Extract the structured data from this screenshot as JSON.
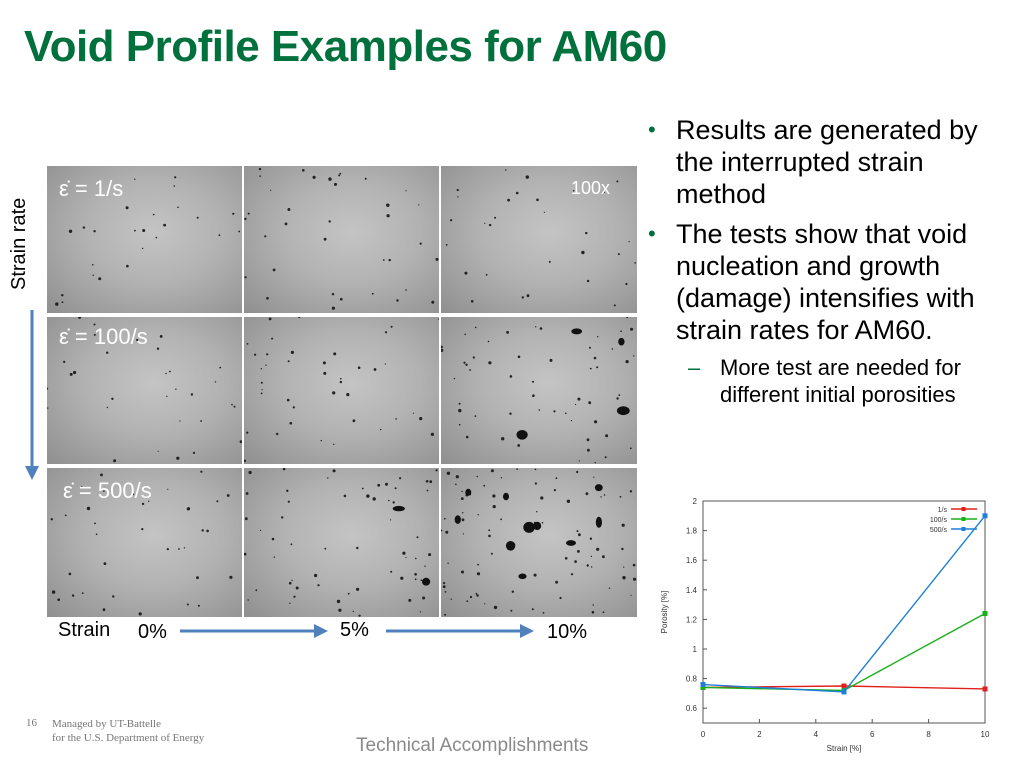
{
  "slide": {
    "title": "Void Profile Examples for AM60",
    "footer_number": "16",
    "footer_org_line1": "Managed by UT-Battelle",
    "footer_org_line2": "for the U.S. Department of Energy",
    "footer_section": "Technical Accomplishments",
    "accent_color": "#00703c"
  },
  "micrographs": {
    "side_label": "Strain rate",
    "magnification": "100x",
    "rows": [
      {
        "rate_label": "ε̇ = 1/s"
      },
      {
        "rate_label": "ε̇ = 100/s"
      },
      {
        "rate_label": "ε̇ = 500/s"
      }
    ],
    "strain_label": "Strain",
    "strain_ticks": [
      "0%",
      "5%",
      "10%"
    ],
    "arrow_color": "#4f81bd"
  },
  "bullets": {
    "items": [
      "Results are generated by the interrupted strain method",
      "The tests show that void nucleation and growth (damage) intensifies with strain rates for AM60."
    ],
    "sub_items": [
      "More test are needed for different initial porosities"
    ]
  },
  "chart_data": {
    "type": "line",
    "xlabel": "Strain [%]",
    "ylabel": "Porosity [%]",
    "xlim": [
      0,
      10
    ],
    "ylim": [
      0.5,
      2
    ],
    "xticks": [
      "0",
      "2",
      "4",
      "6",
      "8",
      "10"
    ],
    "yticks": [
      "0.6",
      "0.8",
      "1",
      "1.2",
      "1.4",
      "1.6",
      "1.8",
      "2"
    ],
    "legend_position": "top-right",
    "x": [
      0,
      5,
      10
    ],
    "series": [
      {
        "name": "1/s",
        "values": [
          0.74,
          0.75,
          0.73
        ],
        "color": "#e0201b"
      },
      {
        "name": "100/s",
        "values": [
          0.74,
          0.72,
          1.24
        ],
        "color": "#18b018"
      },
      {
        "name": "500/s",
        "values": [
          0.76,
          0.71,
          1.9
        ],
        "color": "#1f7fd8"
      }
    ]
  }
}
